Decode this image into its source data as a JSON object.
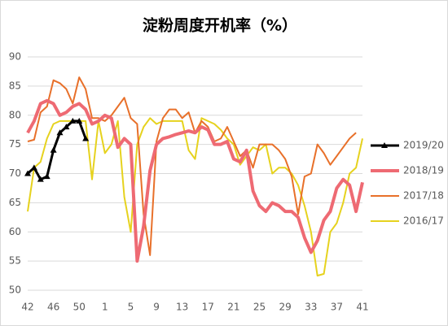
{
  "chart_data": {
    "type": "line",
    "title": "淀粉周度开机率（%）",
    "categories": [
      "42",
      null,
      null,
      null,
      "46",
      null,
      null,
      null,
      "50",
      null,
      null,
      null,
      "1",
      null,
      null,
      null,
      "5",
      null,
      null,
      null,
      "9",
      null,
      null,
      null,
      "13",
      null,
      null,
      null,
      "17",
      null,
      null,
      null,
      "21",
      null,
      null,
      null,
      "25",
      null,
      null,
      null,
      "29",
      null,
      null,
      null,
      "33",
      null,
      null,
      null,
      "37",
      null,
      null,
      null,
      "41"
    ],
    "ylim": [
      50,
      90
    ],
    "yticks": [
      50,
      55,
      60,
      65,
      70,
      75,
      80,
      85,
      90
    ],
    "grid": true,
    "legend": "right",
    "series": [
      {
        "name": "2019/20",
        "color": "#000000",
        "values": [
          70,
          71,
          69,
          69.5,
          74,
          77,
          78,
          79,
          79,
          76,
          null,
          null,
          null,
          null,
          null,
          null,
          null,
          null,
          null,
          null,
          null,
          null,
          null,
          null,
          null,
          null,
          null,
          null,
          null,
          null,
          null,
          null,
          null,
          null,
          null,
          null,
          null,
          null,
          null,
          null,
          null,
          null,
          null,
          null,
          null,
          null,
          null,
          null,
          null,
          null,
          null,
          null,
          null
        ]
      },
      {
        "name": "2018/19",
        "color": "#ee6a73",
        "values": [
          77,
          79,
          82,
          82.5,
          82,
          80,
          80.5,
          81.5,
          82,
          81,
          78.5,
          79,
          80,
          79.5,
          74.5,
          76,
          75,
          55,
          61,
          70.5,
          75,
          76,
          76.3,
          76.7,
          77,
          77.3,
          77,
          78,
          77.5,
          75,
          75,
          75.5,
          72.5,
          72,
          74,
          67,
          64.5,
          63.5,
          65,
          64.5,
          63.5,
          63.5,
          62.5,
          59,
          56.5,
          58.5,
          62,
          63.5,
          67.5,
          69,
          68,
          63.5,
          68.5
        ]
      },
      {
        "name": "2017/18",
        "color": "#e8702a",
        "values": [
          75.5,
          75.8,
          80.5,
          81.5,
          86,
          85.5,
          84.5,
          82,
          86.5,
          84.5,
          79.5,
          79.5,
          79,
          80,
          81.5,
          83,
          79.5,
          78.5,
          63,
          56,
          75.5,
          79.5,
          81,
          81,
          79.5,
          80.5,
          77,
          79,
          78,
          75.5,
          76,
          78,
          75.5,
          73,
          74,
          71,
          75,
          75,
          75,
          74,
          72.5,
          69.5,
          63,
          69.5,
          70,
          75,
          73.5,
          71.5,
          73,
          74.5,
          76,
          77,
          null
        ]
      },
      {
        "name": "2016/17",
        "color": "#e6d21e",
        "values": [
          63.5,
          71,
          72,
          76,
          78.5,
          79,
          79,
          79,
          79,
          79,
          69,
          79,
          73.5,
          75,
          79,
          66,
          60,
          75,
          78,
          79.5,
          78.5,
          79,
          79,
          79,
          79,
          74,
          72.5,
          79.5,
          79,
          78.5,
          77.5,
          76,
          75,
          71.5,
          73,
          74.5,
          74,
          75,
          70,
          71,
          71,
          70,
          68,
          64.5,
          60,
          52.5,
          52.8,
          60,
          61.5,
          65,
          70,
          71,
          76
        ]
      }
    ]
  }
}
